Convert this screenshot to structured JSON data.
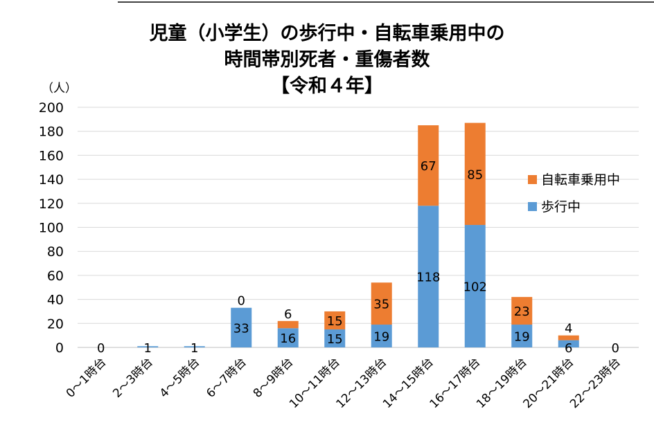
{
  "chart_data": {
    "type": "bar",
    "stacked": true,
    "title_lines": [
      "児童（小学生）の歩行中・自転車乗用中の",
      "時間帯別死者・重傷者数",
      "【令和４年】"
    ],
    "yunit": "（人）",
    "ylim": [
      0,
      200
    ],
    "yticks": [
      0,
      20,
      40,
      60,
      80,
      100,
      120,
      140,
      160,
      180,
      200
    ],
    "grid": true,
    "legend_position": "right",
    "categories": [
      "0～1時台",
      "2～3時台",
      "4～5時台",
      "6～7時台",
      "8～9時台",
      "10～11時台",
      "12～13時台",
      "14～15時台",
      "16～17時台",
      "18～19時台",
      "20～21時台",
      "22～23時台"
    ],
    "series": [
      {
        "name": "歩行中",
        "color": "#5b9bd5",
        "values": [
          0,
          1,
          1,
          33,
          16,
          15,
          19,
          118,
          102,
          19,
          6,
          0
        ]
      },
      {
        "name": "自転車乗用中",
        "color": "#ed7d31",
        "values": [
          0,
          0,
          0,
          0,
          6,
          15,
          35,
          67,
          85,
          23,
          4,
          0
        ]
      }
    ],
    "data_labels": [
      {
        "series": 0,
        "values": [
          "0",
          "1",
          "1",
          "33",
          "16",
          "15",
          "19",
          "118",
          "102",
          "19",
          "6",
          "0"
        ]
      },
      {
        "series": 1,
        "values": [
          null,
          null,
          null,
          "0",
          "6",
          "15",
          "35",
          "67",
          "85",
          "23",
          "4",
          null
        ]
      }
    ]
  }
}
